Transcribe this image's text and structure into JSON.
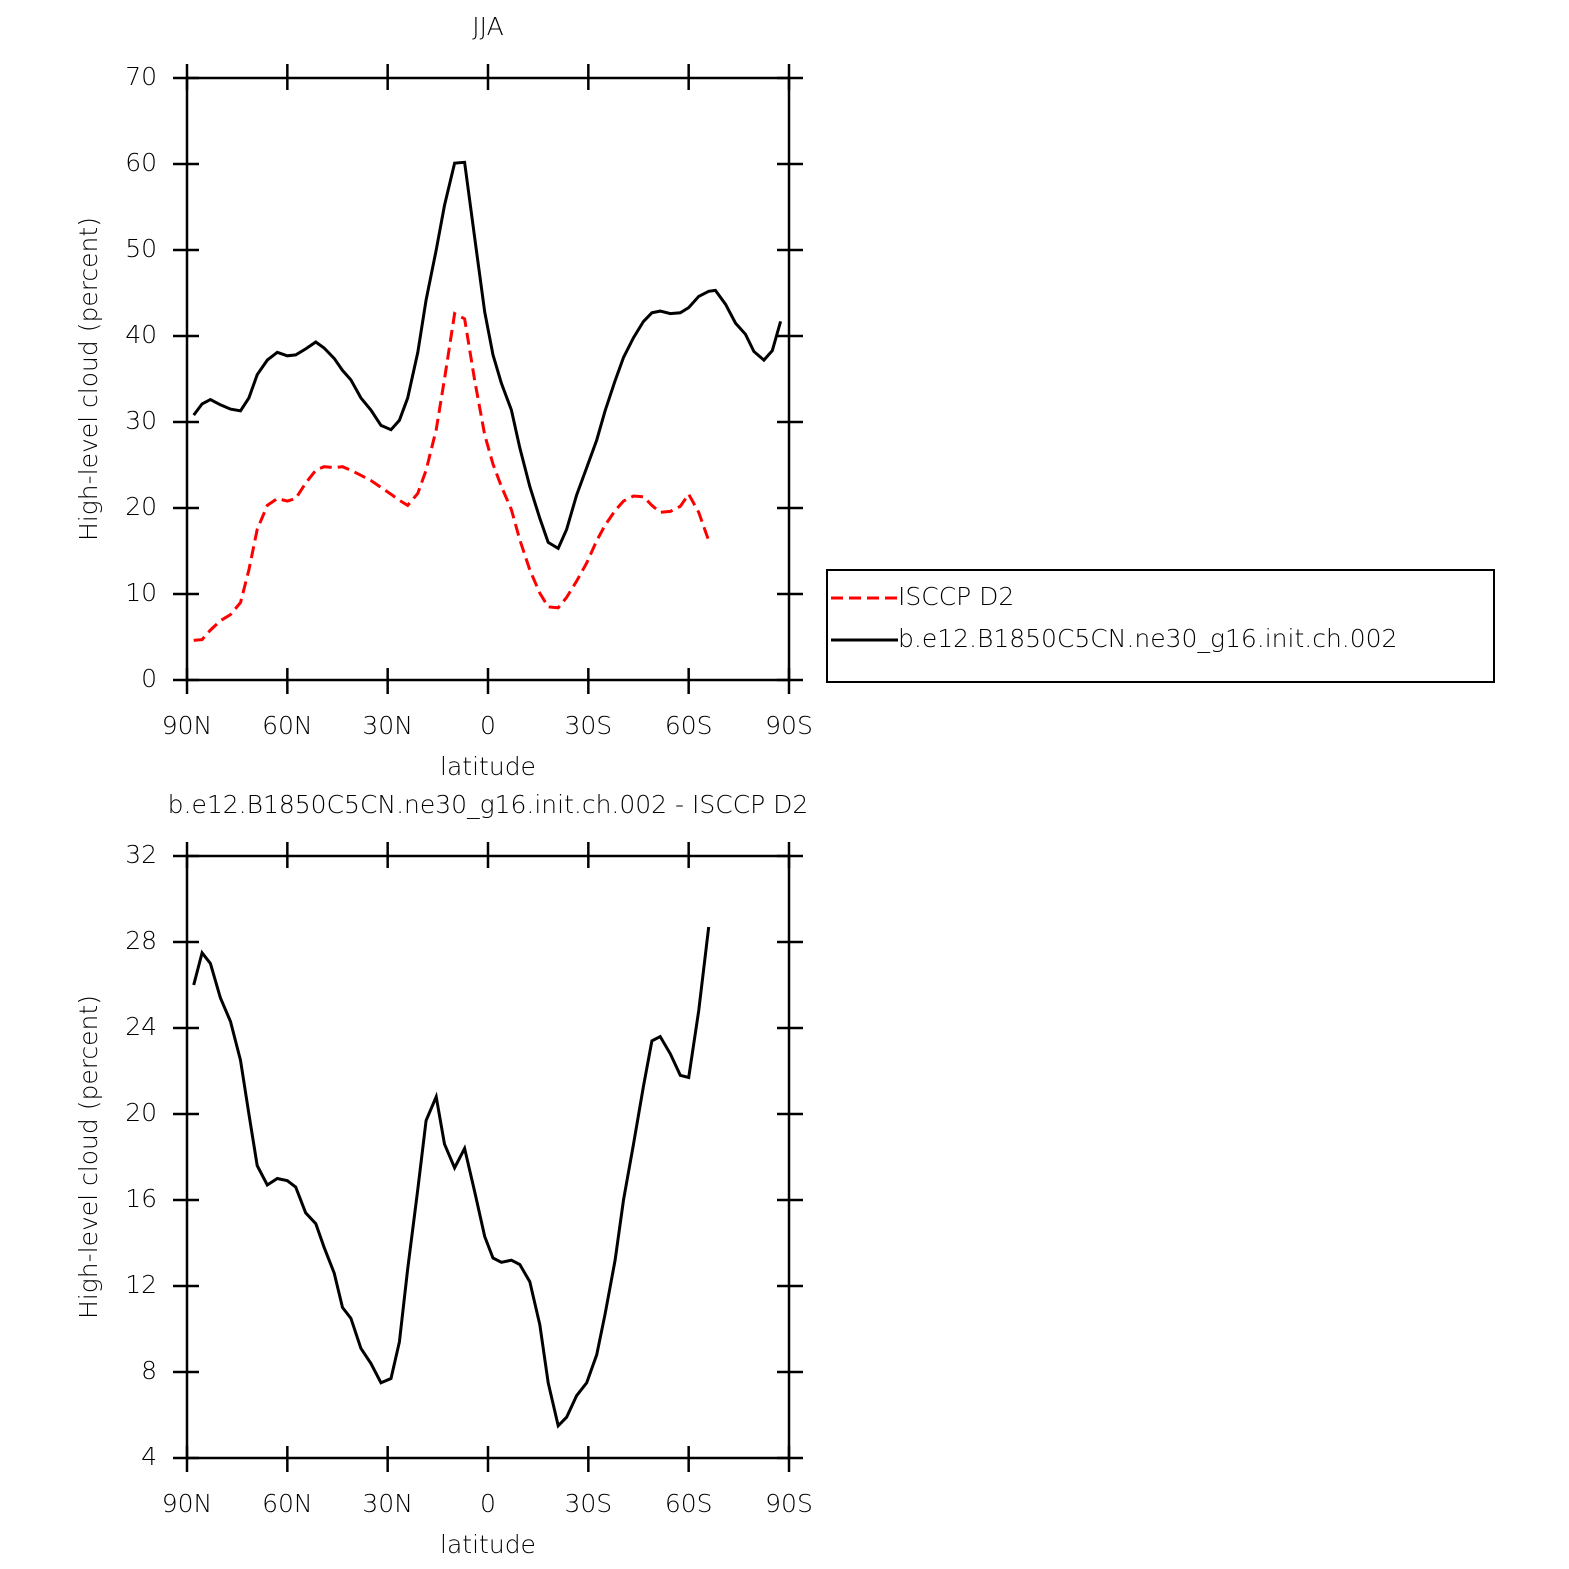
{
  "chart_data": [
    {
      "type": "line",
      "title": "JJA",
      "x_label": "latitude",
      "y_label": "High-level cloud (percent)",
      "x": [
        88,
        85.5,
        83,
        80,
        77,
        74,
        71.5,
        69,
        66,
        63,
        60,
        57.5,
        54.5,
        51.5,
        49,
        46,
        43.5,
        41,
        38,
        35,
        32,
        29,
        26.5,
        24,
        21,
        18.5,
        15.5,
        13,
        10,
        7,
        4,
        1,
        -1.5,
        -4,
        -7,
        -9.5,
        -12.5,
        -15.5,
        -18,
        -21,
        -23.5,
        -26.5,
        -29.5,
        -32.5,
        -35,
        -38,
        -40.5,
        -43.5,
        -46.5,
        -49,
        -51.5,
        -54.5,
        -57.5,
        -60,
        -63,
        -66,
        -68,
        -71,
        -74,
        -77,
        -79.5,
        -82.5,
        -85,
        -87.5
      ],
      "series": [
        {
          "name": "ISCCP D2",
          "color": "#ff0000",
          "line_style": "dashed",
          "values": [
            4.6,
            4.7,
            5.8,
            6.9,
            7.6,
            9.0,
            12.8,
            17.5,
            20.3,
            21.1,
            20.8,
            21.1,
            22.9,
            24.4,
            24.8,
            24.7,
            24.8,
            24.4,
            23.8,
            23.2,
            22.4,
            21.6,
            20.9,
            20.3,
            21.7,
            24.4,
            29.1,
            35.0,
            42.6,
            42.0,
            34.9,
            28.5,
            25.1,
            22.5,
            19.8,
            16.3,
            12.8,
            10.1,
            8.5,
            8.4,
            9.6,
            11.5,
            13.6,
            16.2,
            18.0,
            19.7,
            20.8,
            21.4,
            21.3,
            20.3,
            19.5,
            19.6,
            20.2,
            21.6,
            19.5,
            16.2,
            null,
            null,
            null,
            null,
            null,
            null,
            null,
            null
          ]
        },
        {
          "name": "b.e12.B1850C5CN.ne30_g16.init.ch.002",
          "color": "#000000",
          "line_style": "solid",
          "values": [
            30.8,
            32.1,
            32.6,
            32.0,
            31.5,
            31.3,
            32.8,
            35.5,
            37.2,
            38.1,
            37.7,
            37.8,
            38.5,
            39.3,
            38.6,
            37.4,
            36.0,
            34.9,
            32.8,
            31.4,
            29.6,
            29.1,
            30.2,
            32.8,
            38.1,
            44.2,
            50.0,
            55.2,
            60.1,
            60.2,
            51.5,
            42.8,
            37.8,
            34.5,
            31.4,
            27.0,
            22.5,
            18.8,
            16.0,
            15.3,
            17.5,
            21.5,
            24.7,
            27.9,
            31.3,
            34.8,
            37.5,
            39.8,
            41.7,
            42.7,
            42.9,
            42.6,
            42.7,
            43.3,
            44.6,
            45.2,
            45.3,
            43.7,
            41.5,
            40.2,
            38.2,
            37.2,
            38.3,
            41.7
          ]
        }
      ],
      "xlim": [
        90,
        -90
      ],
      "xticks": [
        {
          "value": 90,
          "label": "90N"
        },
        {
          "value": 60,
          "label": "60N"
        },
        {
          "value": 30,
          "label": "30N"
        },
        0,
        {
          "value": -30,
          "label": "30S"
        },
        {
          "value": -60,
          "label": "60S"
        },
        {
          "value": -90,
          "label": "90S"
        }
      ],
      "ylim": [
        0,
        70
      ],
      "yticks": [
        0,
        10,
        20,
        30,
        40,
        50,
        60,
        70
      ],
      "legend": "right"
    },
    {
      "type": "line",
      "title": "b.e12.B1850C5CN.ne30_g16.init.ch.002 - ISCCP D2",
      "x_label": "latitude",
      "y_label": "High-level cloud (percent)",
      "x": [
        88,
        85.5,
        83,
        80,
        77,
        74,
        71.5,
        69,
        66,
        63,
        60,
        57.5,
        54.5,
        51.5,
        49,
        46,
        43.5,
        41,
        38,
        35,
        32,
        29,
        26.5,
        24,
        21,
        18.5,
        15.5,
        13,
        10,
        7,
        4,
        1,
        -1.5,
        -4,
        -7,
        -9.5,
        -12.5,
        -15.5,
        -18,
        -21,
        -23.5,
        -26.5,
        -29.5,
        -32.5,
        -35,
        -38,
        -40.5,
        -43.5,
        -46.5,
        -49,
        -51.5,
        -54.5,
        -57.5,
        -60,
        -63,
        -66
      ],
      "series": [
        {
          "color": "#000000",
          "line_style": "solid",
          "values": [
            26.0,
            27.5,
            27.0,
            25.4,
            24.3,
            22.5,
            20.0,
            17.6,
            16.7,
            17.0,
            16.9,
            16.6,
            15.4,
            14.9,
            13.8,
            12.6,
            11.0,
            10.5,
            9.1,
            8.4,
            7.5,
            7.7,
            9.4,
            12.8,
            16.5,
            19.7,
            20.8,
            18.6,
            17.5,
            18.4,
            16.4,
            14.3,
            13.3,
            13.1,
            13.2,
            13.0,
            12.2,
            10.2,
            7.5,
            5.5,
            5.9,
            6.9,
            7.5,
            8.8,
            10.7,
            13.2,
            16.0,
            18.6,
            21.3,
            23.4,
            23.6,
            22.8,
            21.8,
            21.7,
            24.8,
            28.7
          ]
        }
      ],
      "xlim": [
        90,
        -90
      ],
      "xticks": [
        {
          "value": 90,
          "label": "90N"
        },
        {
          "value": 60,
          "label": "60N"
        },
        {
          "value": 30,
          "label": "30N"
        },
        0,
        {
          "value": -30,
          "label": "30S"
        },
        {
          "value": -60,
          "label": "60S"
        },
        {
          "value": -90,
          "label": "90S"
        }
      ],
      "ylim": [
        4,
        32
      ],
      "yticks": [
        4,
        8,
        12,
        16,
        20,
        24,
        28,
        32
      ]
    }
  ]
}
